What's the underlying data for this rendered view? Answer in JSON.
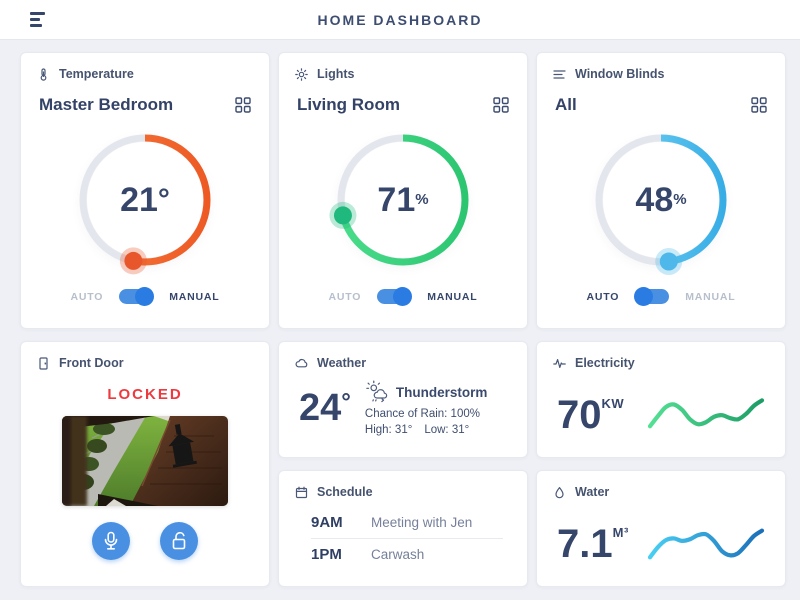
{
  "header": {
    "title": "HOME DASHBOARD",
    "menu_icon": "hamburger-icon"
  },
  "colors": {
    "background": "#eef0f5",
    "navy_text": "#36466b",
    "muted_label": "#b7bfcc",
    "toggle_blue": "#4a90e2",
    "toggle_knob_blue": "#2a7ce2",
    "locked_red": "#ee3a3e"
  },
  "cards": {
    "temperature": {
      "title": "Temperature",
      "icon": "thermometer-icon",
      "zone": "Master Bedroom",
      "value": "21",
      "unit": "°",
      "percent": 53,
      "mode": "manual",
      "auto_label": "AUTO",
      "manual_label": "MANUAL",
      "arc_start": "#f5793d",
      "arc_end": "#ee5a24",
      "knob": "#e8562b"
    },
    "lights": {
      "title": "Lights",
      "icon": "brightness-icon",
      "zone": "Living Room",
      "value": "71",
      "unit": "%",
      "percent": 71,
      "mode": "manual",
      "auto_label": "AUTO",
      "manual_label": "MANUAL",
      "arc_start": "#49dc8a",
      "arc_end": "#2cc671",
      "knob": "#1fb87d"
    },
    "window_blinds": {
      "title": "Window Blinds",
      "icon": "blinds-icon",
      "zone": "All",
      "value": "48",
      "unit": "%",
      "percent": 48,
      "mode": "auto",
      "auto_label": "AUTO",
      "manual_label": "MANUAL",
      "arc_start": "#7ad7f8",
      "arc_end": "#38ade5",
      "knob": "#4db8e9"
    },
    "front_door": {
      "title": "Front Door",
      "icon": "door-icon",
      "status": "LOCKED",
      "buttons": [
        "microphone",
        "unlock"
      ]
    },
    "weather": {
      "title": "Weather",
      "icon": "cloud-icon",
      "temperature": "24",
      "temperature_unit": "°",
      "condition": "Thunderstorm",
      "condition_icon": "storm-icon",
      "rain_label": "Chance of Rain: 100%",
      "high_label": "High: 31°",
      "low_label": "Low: 31°"
    },
    "electricity": {
      "title": "Electricity",
      "icon": "pulse-icon",
      "value": "70",
      "unit": "KW",
      "trend": [
        25,
        50,
        72,
        78,
        65,
        42,
        30,
        35,
        48,
        52,
        45,
        42,
        55,
        75,
        88
      ],
      "line_start": "#55e094",
      "line_end": "#1d9d66"
    },
    "schedule": {
      "title": "Schedule",
      "icon": "calendar-icon",
      "events": [
        {
          "time": "9AM",
          "label": "Meeting with Jen"
        },
        {
          "time": "1PM",
          "label": "Carwash"
        }
      ]
    },
    "water": {
      "title": "Water",
      "icon": "droplet-icon",
      "value": "7.1",
      "unit": "M³",
      "trend": [
        20,
        45,
        62,
        66,
        60,
        64,
        74,
        76,
        60,
        35,
        25,
        30,
        50,
        72,
        85
      ],
      "line_start": "#49cff3",
      "line_end": "#1c6fb9"
    }
  }
}
